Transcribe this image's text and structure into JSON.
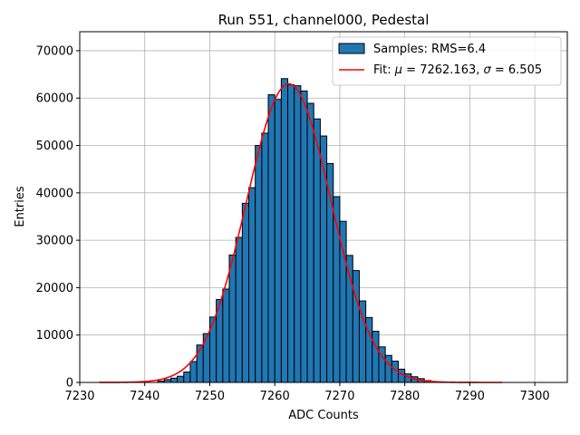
{
  "chart_data": {
    "type": "bar",
    "title": "Run 551, channel000, Pedestal",
    "xlabel": "ADC Counts",
    "ylabel": "Entries",
    "xlim": [
      7230,
      7305
    ],
    "ylim": [
      0,
      74000
    ],
    "xticks": [
      7230,
      7240,
      7250,
      7260,
      7270,
      7280,
      7290,
      7300
    ],
    "yticks": [
      0,
      10000,
      20000,
      30000,
      40000,
      50000,
      60000,
      70000
    ],
    "grid": true,
    "legend_position": "top-right",
    "colors": {
      "bars": "#1f77b4",
      "bar_edge": "#000000",
      "fit": "#ff0000",
      "grid": "#b0b0b0"
    },
    "histogram": {
      "name": "Samples: RMS=6.4",
      "bin_width": 1,
      "bin_starts": [
        7242,
        7243,
        7244,
        7245,
        7246,
        7247,
        7248,
        7249,
        7250,
        7251,
        7252,
        7253,
        7254,
        7255,
        7256,
        7257,
        7258,
        7259,
        7260,
        7261,
        7262,
        7263,
        7264,
        7265,
        7266,
        7267,
        7268,
        7269,
        7270,
        7271,
        7272,
        7273,
        7274,
        7275,
        7276,
        7277,
        7278,
        7279,
        7280,
        7281,
        7282,
        7283,
        7284
      ],
      "counts": [
        300,
        600,
        900,
        1300,
        2200,
        4400,
        7900,
        10300,
        13800,
        17500,
        19700,
        26900,
        30600,
        37800,
        41100,
        50000,
        52600,
        60700,
        59700,
        64100,
        62800,
        62600,
        61500,
        58900,
        55600,
        52000,
        46200,
        39200,
        34000,
        26800,
        23600,
        17200,
        13700,
        10800,
        7500,
        5700,
        4500,
        2800,
        1800,
        1200,
        800,
        400,
        200
      ]
    },
    "fit": {
      "name": "Fit: μ = 7262.163, σ = 6.505",
      "label_prefix": "Fit: ",
      "label_mu": "μ",
      "label_mid": " = 7262.163, ",
      "label_sigma": "σ",
      "label_suffix": " = 6.505",
      "mu": 7262.163,
      "sigma": 6.505,
      "amplitude": 63000,
      "x_range": [
        7233,
        7295
      ]
    }
  }
}
